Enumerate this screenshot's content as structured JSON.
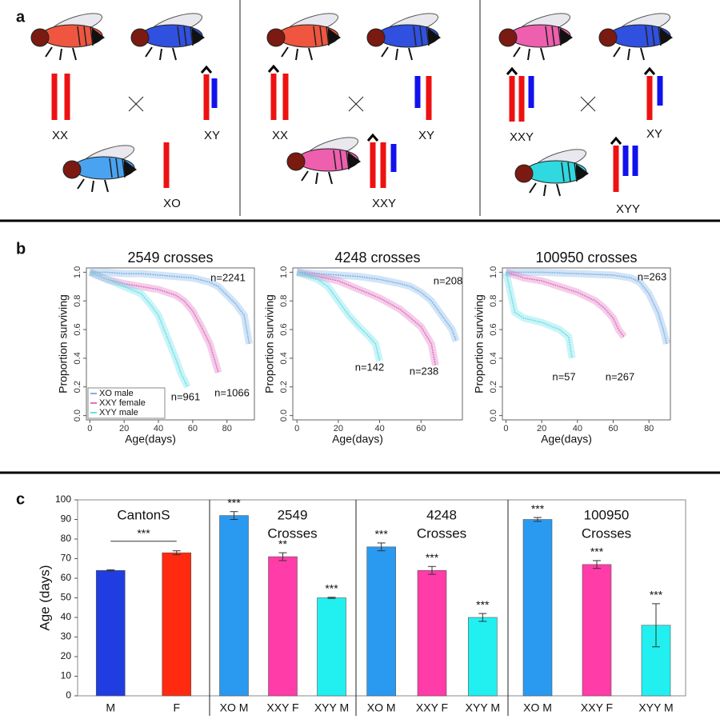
{
  "panel_labels": [
    "a",
    "b",
    "c"
  ],
  "crosses": [
    {
      "parents": [
        "XX",
        "XY"
      ],
      "offspring": "XO"
    },
    {
      "parents": [
        "XX",
        "XY"
      ],
      "offspring": "XXY"
    },
    {
      "parents": [
        "XXY",
        "XY"
      ],
      "offspring": "XYY"
    }
  ],
  "chart_data": [
    {
      "type": "line",
      "title": "2549 crosses",
      "x_label": "Age(days)",
      "y_label": "Proportion surviving",
      "xlim": [
        -2,
        96
      ],
      "ylim": [
        -0.03,
        1.03
      ],
      "xticks": [
        0,
        20,
        40,
        60,
        80
      ],
      "yticks": [
        {
          "value": 0,
          "label": "0.0"
        },
        {
          "value": 0.2,
          "label": "0.2"
        },
        {
          "value": 0.4,
          "label": "0.4"
        },
        {
          "value": 0.6,
          "label": "0.6"
        },
        {
          "value": 0.8,
          "label": "0.8"
        },
        {
          "value": 1,
          "label": "1.0"
        }
      ],
      "legend": "lower left",
      "series": [
        {
          "name": "XO male",
          "color": "#7fb3e6",
          "x": [
            0,
            10,
            20,
            30,
            40,
            50,
            60,
            70,
            75,
            80,
            85,
            90,
            93
          ],
          "values": [
            1,
            1,
            0.99,
            0.99,
            0.98,
            0.97,
            0.96,
            0.93,
            0.9,
            0.84,
            0.78,
            0.7,
            0.5
          ]
        },
        {
          "name": "XXY female",
          "color": "#e070c0",
          "x": [
            0,
            10,
            20,
            30,
            40,
            50,
            55,
            60,
            65,
            70,
            73,
            75
          ],
          "values": [
            1,
            0.95,
            0.92,
            0.9,
            0.88,
            0.84,
            0.8,
            0.73,
            0.62,
            0.5,
            0.38,
            0.3
          ]
        },
        {
          "name": "XYY male",
          "color": "#66e0e8",
          "x": [
            0,
            10,
            20,
            30,
            35,
            40,
            45,
            50,
            53,
            55,
            57
          ],
          "values": [
            1,
            0.95,
            0.9,
            0.85,
            0.78,
            0.7,
            0.55,
            0.4,
            0.3,
            0.25,
            0.2
          ]
        }
      ],
      "annotations": [
        "n=2241",
        "n=1066",
        "n=961"
      ]
    },
    {
      "type": "line",
      "title": "4248 crosses",
      "x_label": "Age(days)",
      "y_label": "Proportion surviving",
      "xlim": [
        -2,
        80
      ],
      "ylim": [
        -0.03,
        1.03
      ],
      "xticks": [
        0,
        20,
        40,
        60
      ],
      "yticks": [
        {
          "value": 0,
          "label": "0.0"
        },
        {
          "value": 0.2,
          "label": "0.2"
        },
        {
          "value": 0.4,
          "label": "0.4"
        },
        {
          "value": 0.6,
          "label": "0.6"
        },
        {
          "value": 0.8,
          "label": "0.8"
        },
        {
          "value": 1,
          "label": "1.0"
        }
      ],
      "series": [
        {
          "color": "#7fb3e6",
          "x": [
            0,
            10,
            20,
            30,
            40,
            50,
            55,
            60,
            65,
            70,
            75,
            77
          ],
          "values": [
            1,
            0.99,
            0.98,
            0.97,
            0.95,
            0.92,
            0.9,
            0.86,
            0.8,
            0.7,
            0.6,
            0.52
          ]
        },
        {
          "color": "#e070c0",
          "x": [
            0,
            10,
            20,
            30,
            40,
            50,
            55,
            60,
            65,
            67
          ],
          "values": [
            1,
            0.97,
            0.94,
            0.88,
            0.82,
            0.74,
            0.68,
            0.62,
            0.5,
            0.35
          ]
        },
        {
          "color": "#66e0e8",
          "x": [
            0,
            10,
            15,
            20,
            25,
            30,
            35,
            38,
            40
          ],
          "values": [
            1,
            0.95,
            0.9,
            0.8,
            0.7,
            0.62,
            0.55,
            0.5,
            0.38
          ]
        }
      ],
      "annotations": [
        "n=208",
        "n=142",
        "n=238"
      ]
    },
    {
      "type": "line",
      "title": "100950 crosses",
      "x_label": "Age(days)",
      "y_label": "Proportion surviving",
      "xlim": [
        -2,
        92
      ],
      "ylim": [
        -0.03,
        1.03
      ],
      "xticks": [
        0,
        20,
        40,
        60,
        80
      ],
      "yticks": [
        {
          "value": 0,
          "label": "0.0"
        },
        {
          "value": 0.2,
          "label": "0.2"
        },
        {
          "value": 0.4,
          "label": "0.4"
        },
        {
          "value": 0.6,
          "label": "0.6"
        },
        {
          "value": 0.8,
          "label": "0.8"
        },
        {
          "value": 1,
          "label": "1.0"
        }
      ],
      "series": [
        {
          "color": "#7fb3e6",
          "x": [
            0,
            20,
            40,
            60,
            70,
            75,
            80,
            85,
            88,
            90
          ],
          "values": [
            1,
            1,
            0.99,
            0.98,
            0.96,
            0.93,
            0.85,
            0.72,
            0.6,
            0.5
          ]
        },
        {
          "color": "#e070c0",
          "x": [
            0,
            10,
            20,
            30,
            40,
            50,
            55,
            60,
            63,
            66
          ],
          "values": [
            1,
            0.96,
            0.94,
            0.9,
            0.86,
            0.8,
            0.75,
            0.68,
            0.6,
            0.55
          ]
        },
        {
          "color": "#66e0e8",
          "x": [
            0,
            5,
            10,
            20,
            30,
            35,
            37
          ],
          "values": [
            1,
            0.72,
            0.68,
            0.65,
            0.6,
            0.55,
            0.4
          ]
        }
      ],
      "annotations": [
        "n=263",
        "n=57",
        "n=267"
      ]
    },
    {
      "type": "bar",
      "y_label": "Age (days)",
      "ylim": [
        0,
        100
      ],
      "yticks": [
        0,
        10,
        20,
        30,
        40,
        50,
        60,
        70,
        80,
        90,
        100
      ],
      "groups": [
        {
          "title_lines": [
            "CantonS"
          ],
          "categories": [
            "M",
            "F"
          ],
          "values": [
            64,
            73
          ],
          "errors": [
            0.3,
            1
          ],
          "colors": [
            "#1f3de0",
            "#ff2a10"
          ],
          "comparison_label": "***"
        },
        {
          "title_lines": [
            "2549",
            "Crosses"
          ],
          "categories": [
            "XO M",
            "XXY F",
            "XYY M"
          ],
          "values": [
            92,
            71,
            50
          ],
          "errors": [
            2,
            2,
            0.3
          ],
          "colors": [
            "#2a9af0",
            "#ff3ca8",
            "#22f0f0"
          ],
          "significance": [
            "***",
            "**",
            "***"
          ]
        },
        {
          "title_lines": [
            "4248",
            "Crosses"
          ],
          "categories": [
            "XO M",
            "XXY F",
            "XYY M"
          ],
          "values": [
            76,
            64,
            40
          ],
          "errors": [
            2,
            2,
            2
          ],
          "colors": [
            "#2a9af0",
            "#ff3ca8",
            "#22f0f0"
          ],
          "significance": [
            "***",
            "***",
            "***"
          ]
        },
        {
          "title_lines": [
            "100950",
            "Crosses"
          ],
          "categories": [
            "XO M",
            "XXY F",
            "XYY M"
          ],
          "values": [
            90,
            67,
            36
          ],
          "errors": [
            1,
            2,
            11
          ],
          "colors": [
            "#2a9af0",
            "#ff3ca8",
            "#22f0f0"
          ],
          "significance": [
            "***",
            "***",
            "***"
          ]
        }
      ]
    }
  ]
}
